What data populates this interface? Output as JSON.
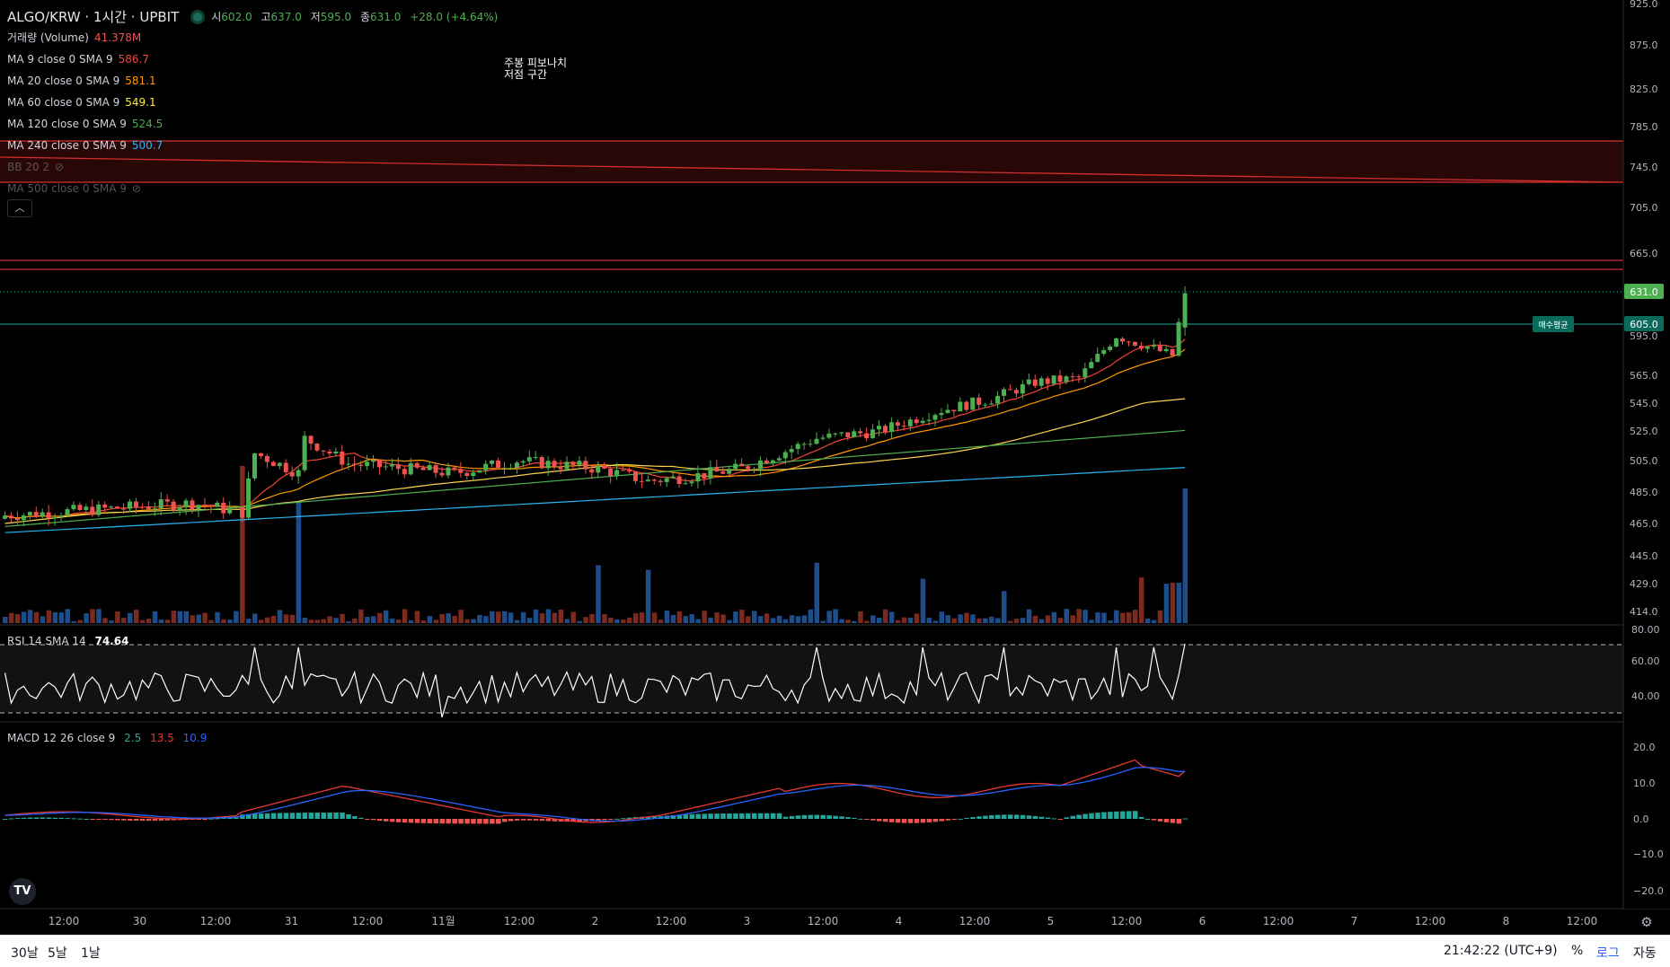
{
  "header": {
    "symbol": "ALGO/KRW · 1시간 · UPBIT",
    "open_label": "시",
    "open": "602.0",
    "high_label": "고",
    "high": "637.0",
    "low_label": "저",
    "low": "595.0",
    "close_label": "종",
    "close": "631.0",
    "change": "+28.0 (+4.64%)"
  },
  "indicators": [
    {
      "label": "거래량 (Volume)",
      "value": "41.378M",
      "color": "#ef5350"
    },
    {
      "label": "MA 9 close 0 SMA 9",
      "value": "586.7",
      "color": "#f44336"
    },
    {
      "label": "MA 20 close 0 SMA 9",
      "value": "581.1",
      "color": "#ff9800"
    },
    {
      "label": "MA 60 close 0 SMA 9",
      "value": "549.1",
      "color": "#ffeb3b"
    },
    {
      "label": "MA 120 close 0 SMA 9",
      "value": "524.5",
      "color": "#4caf50"
    },
    {
      "label": "MA 240 close 0 SMA 9",
      "value": "500.7",
      "color": "#29b6f6"
    },
    {
      "label": "BB 20 2",
      "value": "",
      "color": "#555"
    },
    {
      "label": "MA 500 close 0 SMA 9",
      "value": "",
      "color": "#555"
    }
  ],
  "annotation": {
    "line1": "주봉 피보나치",
    "line2": "저점 구간"
  },
  "price_axis": [
    "925.0",
    "875.0",
    "825.0",
    "785.0",
    "745.0",
    "705.0",
    "665.0",
    "595.0",
    "565.0",
    "545.0",
    "525.0",
    "505.0",
    "485.0",
    "465.0",
    "445.0",
    "429.0",
    "414.0"
  ],
  "price_tags": {
    "last": "631.0",
    "avg": "605.0",
    "avg_label": "매수평균"
  },
  "rsi": {
    "label": "RSI 14 SMA 14",
    "value": "74.64",
    "axis": [
      "80.00",
      "60.00",
      "40.00"
    ]
  },
  "macd": {
    "label": "MACD 12 26 close 9",
    "v1": "2.5",
    "v2": "13.5",
    "v3": "10.9",
    "axis": [
      "20.0",
      "10.0",
      "0.0",
      "−10.0",
      "−20.0"
    ]
  },
  "time_axis": [
    "12:00",
    "30",
    "12:00",
    "31",
    "12:00",
    "11월",
    "12:00",
    "2",
    "12:00",
    "3",
    "12:00",
    "4",
    "12:00",
    "5",
    "12:00",
    "6",
    "12:00",
    "7",
    "12:00",
    "8",
    "12:00"
  ],
  "footer": {
    "range1": "30날",
    "range2": "5날",
    "range3": "1날",
    "clock": "21:42:22 (UTC+9)",
    "percent": "%",
    "log": "로그",
    "auto": "자동"
  },
  "colors": {
    "up": "#26a69a",
    "down": "#ef5350",
    "up_candle": "#4caf50"
  }
}
